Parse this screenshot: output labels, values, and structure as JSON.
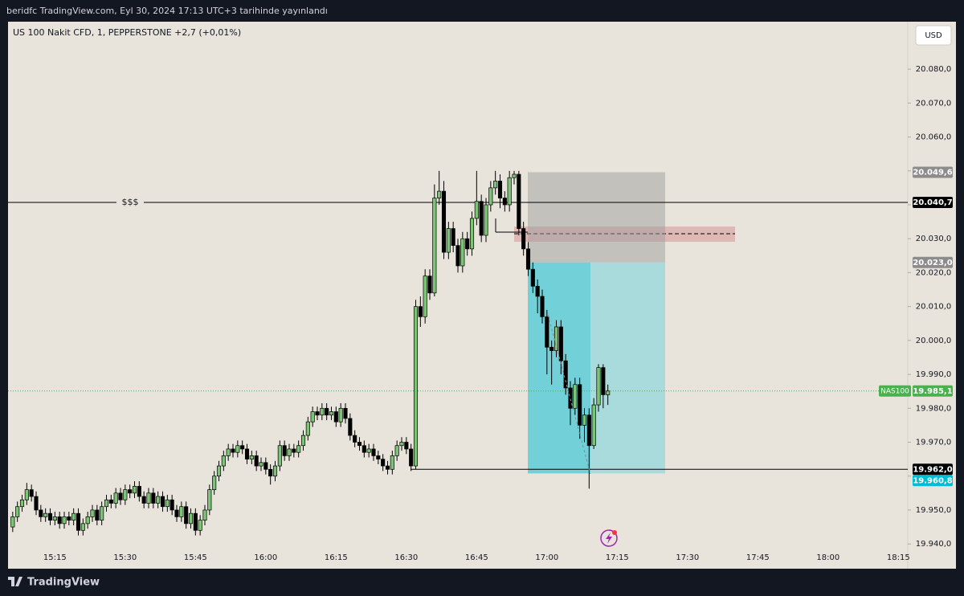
{
  "header": "beridfc TradingView.com, Eyl 30, 2024 17:13 UTC+3 tarihinde yayınlandı",
  "footer": "TradingView",
  "chart_data": {
    "type": "candlestick",
    "title": "US 100 Nakit CFD, 1, PEPPERSTONE  +2,7 (+0,01%)",
    "currency": "USD",
    "annotation": "$$$",
    "bull_color": "#7cc576",
    "bear_color": "#000000",
    "ylim": [
      19932.7,
      20094.0
    ],
    "xlim": [
      "15:05",
      "18:17"
    ],
    "yticks": [
      {
        "value": 19940,
        "label": "19.940,0"
      },
      {
        "value": 19950,
        "label": "19.950,0"
      },
      {
        "value": 19960,
        "label": "19.960,0"
      },
      {
        "value": 19970,
        "label": "19.970,0"
      },
      {
        "value": 19980,
        "label": "19.980,0"
      },
      {
        "value": 19990,
        "label": "19.990,0"
      },
      {
        "value": 20000,
        "label": "20.000,0"
      },
      {
        "value": 20010,
        "label": "20.010,0"
      },
      {
        "value": 20020,
        "label": "20.020,0"
      },
      {
        "value": 20030,
        "label": "20.030,0"
      },
      {
        "value": 20040,
        "label": "20.040,0"
      },
      {
        "value": 20050,
        "label": "20.050,0"
      },
      {
        "value": 20060,
        "label": "20.060,0"
      },
      {
        "value": 20070,
        "label": "20.070,0"
      },
      {
        "value": 20080,
        "label": "20.080,0"
      }
    ],
    "xticks": [
      "15:15",
      "15:30",
      "15:45",
      "16:00",
      "16:15",
      "16:30",
      "16:45",
      "17:00",
      "17:15",
      "17:30",
      "17:45",
      "18:00",
      "18:15"
    ],
    "price_labels": [
      {
        "value": 20049.6,
        "label": "20.049,6",
        "color": "#8c8c8c"
      },
      {
        "value": 20040.7,
        "label": "20.040,7",
        "color": "#000000"
      },
      {
        "value": 20023.0,
        "label": "20.023,0",
        "color": "#8c8c8c"
      },
      {
        "value": 19985.1,
        "label": "19.985,1",
        "color": "#4caf50",
        "tag": "NAS100"
      },
      {
        "value": 19962.0,
        "label": "19.962,0",
        "color": "#000000"
      },
      {
        "value": 19960.8,
        "label": "19.960,8",
        "color": "#00bcd4"
      }
    ],
    "start": "15:06",
    "candles": [
      [
        19945,
        19949.5,
        19943.5,
        19948
      ],
      [
        19948,
        19952.5,
        19946.5,
        19951
      ],
      [
        19951,
        19954.5,
        19949.5,
        19953
      ],
      [
        19953,
        19958,
        19951.5,
        19956
      ],
      [
        19956,
        19957.5,
        19952.5,
        19954
      ],
      [
        19954,
        19955.5,
        19948.5,
        19950
      ],
      [
        19950,
        19951.5,
        19946.5,
        19948
      ],
      [
        19948,
        19950.5,
        19946.5,
        19949
      ],
      [
        19949,
        19950.5,
        19945.5,
        19947
      ],
      [
        19947,
        19949.5,
        19945.5,
        19948
      ],
      [
        19948,
        19949.5,
        19944.5,
        19946
      ],
      [
        19946,
        19949.5,
        19944.5,
        19948
      ],
      [
        19948,
        19949.5,
        19945.5,
        19947
      ],
      [
        19947,
        19950.5,
        19945.5,
        19949
      ],
      [
        19949,
        19950.5,
        19942.5,
        19944
      ],
      [
        19944,
        19947.5,
        19942.5,
        19946
      ],
      [
        19946,
        19949.5,
        19944.5,
        19948
      ],
      [
        19948,
        19951.5,
        19946.5,
        19950
      ],
      [
        19950,
        19951.5,
        19945.5,
        19947
      ],
      [
        19947,
        19952.5,
        19945.5,
        19951
      ],
      [
        19951,
        19954.5,
        19949.5,
        19953
      ],
      [
        19953,
        19954.5,
        19950.5,
        19952
      ],
      [
        19952,
        19956.5,
        19950.5,
        19955
      ],
      [
        19955,
        19956.5,
        19951.5,
        19953
      ],
      [
        19953,
        19957.5,
        19951.5,
        19956
      ],
      [
        19956,
        19957.5,
        19953.5,
        19955
      ],
      [
        19955,
        19958.5,
        19953.5,
        19957
      ],
      [
        19957,
        19958.5,
        19952.5,
        19954
      ],
      [
        19954,
        19955.5,
        19950.5,
        19952
      ],
      [
        19952,
        19956.5,
        19950.5,
        19955
      ],
      [
        19955,
        19956.5,
        19950.5,
        19952
      ],
      [
        19952,
        19955.5,
        19950.5,
        19954
      ],
      [
        19954,
        19955.5,
        19949.5,
        19951
      ],
      [
        19951,
        19954.5,
        19949.5,
        19953
      ],
      [
        19953,
        19954.5,
        19948.5,
        19950
      ],
      [
        19950,
        19951.5,
        19946.5,
        19948
      ],
      [
        19948,
        19952.5,
        19946.5,
        19951
      ],
      [
        19951,
        19952.5,
        19944.5,
        19946
      ],
      [
        19946,
        19950.5,
        19944.5,
        19949
      ],
      [
        19949,
        19950.5,
        19942.5,
        19944
      ],
      [
        19944,
        19948.5,
        19942.5,
        19947
      ],
      [
        19947,
        19951.5,
        19945.5,
        19950
      ],
      [
        19950,
        19957.5,
        19948.5,
        19956
      ],
      [
        19956,
        19961.5,
        19954.5,
        19960
      ],
      [
        19960,
        19964.5,
        19958.5,
        19963
      ],
      [
        19963,
        19967.5,
        19961.5,
        19966
      ],
      [
        19966,
        19969.5,
        19964.5,
        19968
      ],
      [
        19968,
        19969.5,
        19965.5,
        19967
      ],
      [
        19967,
        19970.5,
        19965.5,
        19969
      ],
      [
        19969,
        19970.5,
        19966.5,
        19968
      ],
      [
        19968,
        19969.5,
        19963.5,
        19965
      ],
      [
        19965,
        19967.5,
        19963.5,
        19966
      ],
      [
        19966,
        19967.5,
        19961.5,
        19963
      ],
      [
        19963,
        19965.5,
        19961.5,
        19964
      ],
      [
        19964,
        19965.5,
        19960.5,
        19962
      ],
      [
        19962,
        19963.5,
        19957.5,
        19960
      ],
      [
        19960,
        19964.5,
        19958.5,
        19963
      ],
      [
        19963,
        19970.5,
        19961.5,
        19969
      ],
      [
        19969,
        19970.5,
        19964.5,
        19966
      ],
      [
        19966,
        19969.5,
        19964.5,
        19968
      ],
      [
        19968,
        19969.5,
        19965.5,
        19967
      ],
      [
        19967,
        19970.5,
        19965.5,
        19969
      ],
      [
        19969,
        19973.5,
        19967.5,
        19972
      ],
      [
        19972,
        19977.5,
        19970.5,
        19976
      ],
      [
        19976,
        19980.5,
        19974.5,
        19979
      ],
      [
        19979,
        19980.5,
        19976.5,
        19978
      ],
      [
        19978,
        19981.5,
        19976.5,
        19980
      ],
      [
        19980,
        19981.5,
        19976.5,
        19978
      ],
      [
        19978,
        19980.5,
        19976.5,
        19979
      ],
      [
        19979,
        19980.5,
        19974.5,
        19976
      ],
      [
        19976,
        19981.5,
        19974.5,
        19980
      ],
      [
        19980,
        19981.5,
        19975.5,
        19977
      ],
      [
        19977,
        19978.5,
        19970.5,
        19972
      ],
      [
        19972,
        19973.5,
        19968.5,
        19970
      ],
      [
        19970,
        19971.5,
        19967.5,
        19969
      ],
      [
        19969,
        19970.5,
        19965.5,
        19967
      ],
      [
        19967,
        19969.5,
        19965.5,
        19968
      ],
      [
        19968,
        19969.5,
        19964.5,
        19966
      ],
      [
        19966,
        19967.5,
        19963.5,
        19965
      ],
      [
        19965,
        19966.5,
        19961.5,
        19963
      ],
      [
        19963,
        19964.5,
        19960.5,
        19962
      ],
      [
        19962,
        19967.5,
        19960.5,
        19966
      ],
      [
        19966,
        19970.5,
        19964.5,
        19969
      ],
      [
        19969,
        19971.5,
        19967.5,
        19970
      ],
      [
        19970,
        19971.5,
        19966.5,
        19968
      ],
      [
        19968,
        19969.5,
        19961.5,
        19963
      ],
      [
        19963,
        20012,
        19962,
        20010
      ],
      [
        20010,
        20013,
        20004,
        20007
      ],
      [
        20007,
        20021,
        20005,
        20019
      ],
      [
        20019,
        20021,
        20012,
        20014
      ],
      [
        20014,
        20046,
        20013,
        20042
      ],
      [
        20042,
        20050,
        20040,
        20044
      ],
      [
        20044,
        20047,
        20024,
        20026
      ],
      [
        20026,
        20035,
        20024,
        20033
      ],
      [
        20033,
        20035,
        20026,
        20028
      ],
      [
        20028,
        20030,
        20020,
        20022
      ],
      [
        20022,
        20032,
        20020,
        20030
      ],
      [
        20030,
        20032,
        20025,
        20027
      ],
      [
        20027,
        20038,
        20025,
        20036
      ],
      [
        20036,
        20050,
        20034,
        20041
      ],
      [
        20041,
        20043,
        20029,
        20031
      ],
      [
        20031,
        20042,
        20029,
        20040
      ],
      [
        20040,
        20047,
        20038,
        20045
      ],
      [
        20045,
        20050,
        20043,
        20047
      ],
      [
        20047,
        20049,
        20039,
        20042
      ],
      [
        20042,
        20044,
        20038,
        20040
      ],
      [
        20040,
        20050,
        20038,
        20048
      ],
      [
        20048,
        20050,
        20046,
        20049
      ],
      [
        20049,
        20050,
        20031,
        20033
      ],
      [
        20033,
        20035,
        20025,
        20027
      ],
      [
        20027,
        20029,
        20019,
        20021
      ],
      [
        20021,
        20023,
        20014,
        20016
      ],
      [
        20016,
        20018,
        20008,
        20013
      ],
      [
        20013,
        20015,
        20005,
        20007
      ],
      [
        20007,
        20009,
        19990,
        19998
      ],
      [
        19998,
        20000,
        19987,
        19997
      ],
      [
        19997,
        20006,
        19995,
        20004
      ],
      [
        20004,
        20006,
        19990,
        19994
      ],
      [
        19994,
        19996,
        19984,
        19986
      ],
      [
        19986,
        19988,
        19975,
        19980
      ],
      [
        19980,
        19989,
        19978,
        19987
      ],
      [
        19987,
        19989,
        19971,
        19975
      ],
      [
        19975,
        19980,
        19970,
        19978
      ],
      [
        19978,
        19980,
        19956.3,
        19969
      ],
      [
        19969,
        19983,
        19968,
        19981
      ],
      [
        19981,
        19993,
        19979,
        19992
      ],
      [
        19992,
        19993,
        19980,
        19984
      ],
      [
        19984,
        19987,
        19981,
        19985.1
      ]
    ]
  }
}
